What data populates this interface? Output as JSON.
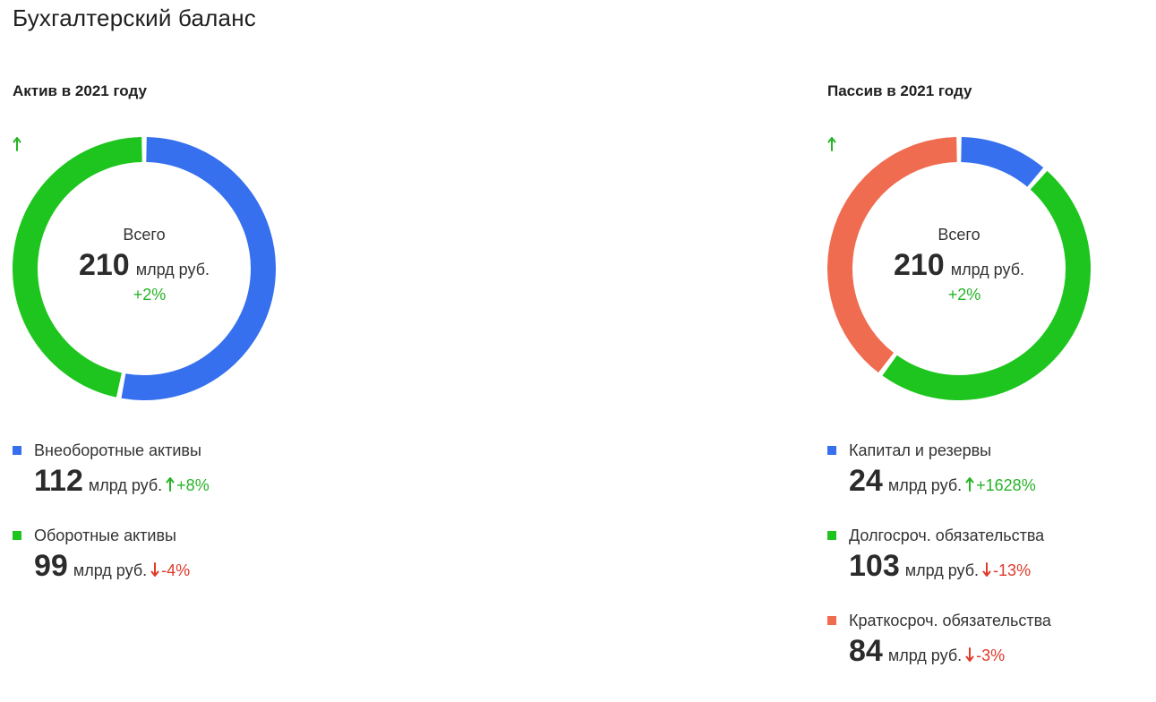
{
  "page_title": "Бухгалтерский баланс",
  "colors": {
    "blue": "#3670ee",
    "green": "#1ec51e",
    "orange": "#f06c50",
    "up": "#27b427",
    "down": "#e03a2a"
  },
  "chart_data": [
    {
      "type": "pie",
      "title": "Актив в 2021 году",
      "center": {
        "label": "Всего",
        "value": "210",
        "unit": "млрд руб.",
        "change": "+2%",
        "direction": "up"
      },
      "series": [
        {
          "name": "Внеоборотные активы",
          "value": 112,
          "value_label": "112",
          "unit": "млрд руб.",
          "change": "+8%",
          "direction": "up",
          "color": "#3670ee"
        },
        {
          "name": "Оборотные активы",
          "value": 99,
          "value_label": "99",
          "unit": "млрд руб.",
          "change": "-4%",
          "direction": "down",
          "color": "#1ec51e"
        }
      ]
    },
    {
      "type": "pie",
      "title": "Пассив в 2021 году",
      "center": {
        "label": "Всего",
        "value": "210",
        "unit": "млрд руб.",
        "change": "+2%",
        "direction": "up"
      },
      "series": [
        {
          "name": "Капитал и резервы",
          "value": 24,
          "value_label": "24",
          "unit": "млрд руб.",
          "change": "+1628%",
          "direction": "up",
          "color": "#3670ee"
        },
        {
          "name": "Долгосроч. обязательства",
          "value": 103,
          "value_label": "103",
          "unit": "млрд руб.",
          "change": "-13%",
          "direction": "down",
          "color": "#1ec51e"
        },
        {
          "name": "Краткосроч. обязательства",
          "value": 84,
          "value_label": "84",
          "unit": "млрд руб.",
          "change": "-3%",
          "direction": "down",
          "color": "#f06c50"
        }
      ]
    }
  ]
}
